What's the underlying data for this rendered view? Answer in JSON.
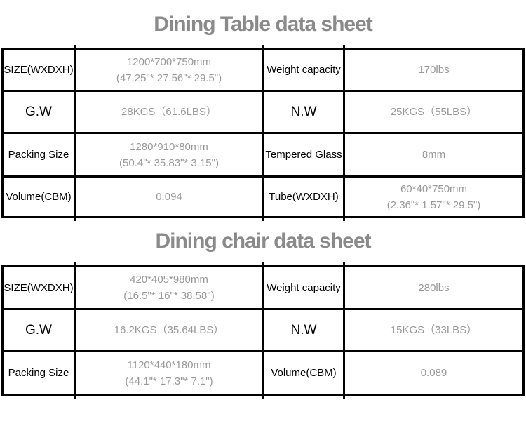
{
  "colors": {
    "title": "#8a8a8a",
    "label_text": "#000000",
    "value_text": "#999999",
    "border": "#000000",
    "background": "#ffffff"
  },
  "tables": {
    "0": {
      "title": "Dining Table data sheet",
      "rows": {
        "0": {
          "label1": "SIZE(WXDXH)",
          "value1_line1": "1200*700*750mm",
          "value1_line2": "(47.25\"* 27.56\"* 29.5\")",
          "label2": "Weight capacity",
          "value2_line1": "170lbs",
          "value2_line2": ""
        },
        "1": {
          "label1": "G.W",
          "value1_line1": "28KGS（61.6LBS）",
          "value1_line2": "",
          "label2": "N.W",
          "value2_line1": "25KGS（55LBS）",
          "value2_line2": ""
        },
        "2": {
          "label1": "Packing Size",
          "value1_line1": "1280*910*80mm",
          "value1_line2": "(50.4\"* 35.83\"* 3.15\")",
          "label2": "Tempered Glass",
          "value2_line1": "8mm",
          "value2_line2": ""
        },
        "3": {
          "label1": "Volume(CBM)",
          "value1_line1": "0.094",
          "value1_line2": "",
          "label2_main": "Tube",
          "label2_sub": "(WXDXH)",
          "value2_line1": "60*40*750mm",
          "value2_line2": "(2.36\"* 1.57\"* 29.5\")"
        }
      }
    },
    "1": {
      "title": "Dining chair data sheet",
      "rows": {
        "0": {
          "label1": "SIZE(WXDXH)",
          "value1_line1": "420*405*980mm",
          "value1_line2": "(16.5\"* 16\"* 38.58\")",
          "label2": "Weight capacity",
          "value2_line1": "280lbs",
          "value2_line2": ""
        },
        "1": {
          "label1": "G.W",
          "value1_line1": "16.2KGS（35.64LBS）",
          "value1_line2": "",
          "label2": "N.W",
          "value2_line1": "15KGS（33LBS）",
          "value2_line2": ""
        },
        "2": {
          "label1": "Packing Size",
          "value1_line1": "1120*440*180mm",
          "value1_line2": "(44.1\"* 17.3\"* 7.1\")",
          "label2": "Volume(CBM)",
          "value2_line1": "0.089",
          "value2_line2": ""
        }
      }
    }
  }
}
